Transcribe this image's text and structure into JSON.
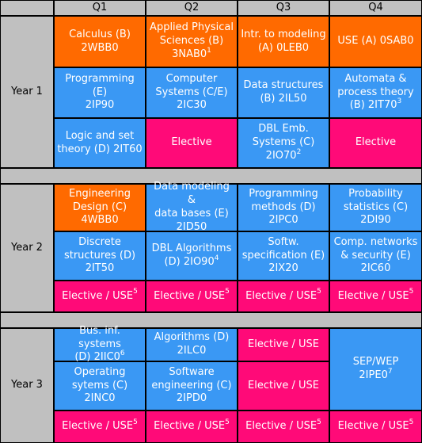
{
  "headers": [
    "",
    "Q1",
    "Q2",
    "Q3",
    "Q4"
  ],
  "years": [
    "Year 1",
    "Year 2",
    "Year 3"
  ],
  "colors": {
    "math": "#ff6a00",
    "cs": "#3a98f4",
    "elective": "#ff0a78",
    "header": "#c0c0c0"
  },
  "cells": [
    {
      "id": "y1-q1-r1",
      "text": "Calculus (B)\n2WBB0",
      "sup": "",
      "color": "orange"
    },
    {
      "id": "y1-q2-r1",
      "text": "Applied Physical\nSciences (B)\n3NAB0",
      "sup": "1",
      "color": "orange"
    },
    {
      "id": "y1-q3-r1",
      "text": "Intr. to modeling\n(A) 0LEB0",
      "sup": "",
      "color": "orange"
    },
    {
      "id": "y1-q4-r1",
      "text": "USE (A) 0SAB0",
      "sup": "",
      "color": "orange"
    },
    {
      "id": "y1-q1-r2",
      "text": "Programming (E)\n2IP90",
      "sup": "",
      "color": "blue"
    },
    {
      "id": "y1-q2-r2",
      "text": "Computer\nSystems (C/E)\n2IC30",
      "sup": "",
      "color": "blue"
    },
    {
      "id": "y1-q3-r2",
      "text": "Data structures\n(B) 2IL50",
      "sup": "",
      "color": "blue"
    },
    {
      "id": "y1-q4-r2",
      "text": "Automata &\nprocess theory\n(B) 2IT70",
      "sup": "3",
      "color": "blue"
    },
    {
      "id": "y1-q1-r3",
      "text": "Logic and set\ntheory (D) 2IT60",
      "sup": "",
      "color": "blue"
    },
    {
      "id": "y1-q2-r3",
      "text": "Elective",
      "sup": "",
      "color": "pink"
    },
    {
      "id": "y1-q3-r3",
      "text": "DBL Emb.\nSystems (C)\n2IO70",
      "sup": "2",
      "color": "blue"
    },
    {
      "id": "y1-q4-r3",
      "text": "Elective",
      "sup": "",
      "color": "pink"
    },
    {
      "id": "y2-q1-r1",
      "text": "Engineering\nDesign (C)\n4WBB0",
      "sup": "",
      "color": "orange"
    },
    {
      "id": "y2-q2-r1",
      "text": "Data modeling &\ndata bases (E)\n2ID50",
      "sup": "",
      "color": "blue"
    },
    {
      "id": "y2-q3-r1",
      "text": "Programming\nmethods (D)\n2IPC0",
      "sup": "",
      "color": "blue"
    },
    {
      "id": "y2-q4-r1",
      "text": "Probability\nstatistics (C)\n2DI90",
      "sup": "",
      "color": "blue"
    },
    {
      "id": "y2-q1-r2",
      "text": "Discrete\nstructures (D)\n2IT50",
      "sup": "",
      "color": "blue"
    },
    {
      "id": "y2-q2-r2",
      "text": "DBL Algorithms\n(D) 2IO90",
      "sup": "4",
      "color": "blue"
    },
    {
      "id": "y2-q3-r2",
      "text": "Softw.\nspecification (E)\n2IX20",
      "sup": "",
      "color": "blue"
    },
    {
      "id": "y2-q4-r2",
      "text": "Comp. networks\n& security (E)\n2IC60",
      "sup": "",
      "color": "blue"
    },
    {
      "id": "y2-q1-r3",
      "text": "Elective / USE",
      "sup": "5",
      "color": "pink"
    },
    {
      "id": "y2-q2-r3",
      "text": "Elective / USE",
      "sup": "5",
      "color": "pink"
    },
    {
      "id": "y2-q3-r3",
      "text": "Elective / USE",
      "sup": "5",
      "color": "pink"
    },
    {
      "id": "y2-q4-r3",
      "text": "Elective / USE",
      "sup": "5",
      "color": "pink"
    },
    {
      "id": "y3-q1-r1",
      "text": "Bus. inf. systems\n(D) 2IIC0",
      "sup": "6",
      "color": "blue"
    },
    {
      "id": "y3-q2-r1",
      "text": "Algorithms (D)\n2ILC0",
      "sup": "",
      "color": "blue"
    },
    {
      "id": "y3-q3-r1",
      "text": "Elective / USE",
      "sup": "",
      "color": "pink"
    },
    {
      "id": "y3-q4-r12",
      "text": "SEP/WEP\n2IPE0",
      "sup": "7",
      "color": "blue"
    },
    {
      "id": "y3-q1-r2",
      "text": "Operating\nsytems (C)\n2INC0",
      "sup": "",
      "color": "blue"
    },
    {
      "id": "y3-q2-r2",
      "text": "Software\nengineering (C)\n2IPD0",
      "sup": "",
      "color": "blue"
    },
    {
      "id": "y3-q3-r2",
      "text": "Elective / USE",
      "sup": "",
      "color": "pink"
    },
    {
      "id": "y3-q1-r3",
      "text": "Elective / USE",
      "sup": "5",
      "color": "pink"
    },
    {
      "id": "y3-q2-r3",
      "text": "Elective / USE",
      "sup": "5",
      "color": "pink"
    },
    {
      "id": "y3-q3-r3",
      "text": "Elective / USE",
      "sup": "5",
      "color": "pink"
    },
    {
      "id": "y3-q4-r3",
      "text": "Elective / USE",
      "sup": "5",
      "color": "pink"
    }
  ]
}
